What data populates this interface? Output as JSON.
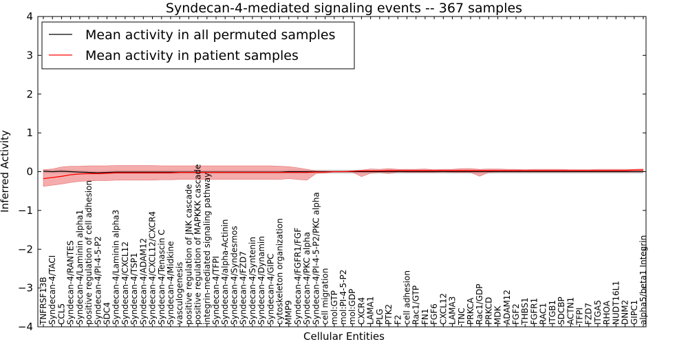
{
  "chart_data": {
    "type": "line",
    "title": "Syndecan-4-mediated signaling events -- 367 samples",
    "xlabel": "Cellular Entities",
    "ylabel": "Inferred Activity",
    "ylim": [
      -4,
      4
    ],
    "yticks": [
      -4,
      -3,
      -2,
      -1,
      0,
      1,
      2,
      3,
      4
    ],
    "ytick_labels": [
      "−4",
      "−3",
      "−2",
      "−1",
      "0",
      "1",
      "2",
      "3",
      "4"
    ],
    "legend_position": "top-left",
    "categories": [
      "TNFRSF13B",
      "Syndecan-4/TACI",
      "CCL5",
      "Syndecan-4/RANTES",
      "Syndecan-4/Laminin alpha1",
      "positive regulation of cell adhesion",
      "Syndecan-4/PI-4-5-P2",
      "SDC4",
      "Syndecan-4/Laminin alpha3",
      "Syndecan-4/CXCL12",
      "Syndecan-4/TSP1",
      "Syndecan-4/ADAM12",
      "Syndecan-4/CXCL12/CXCR4",
      "Syndecan-4/Tenascin C",
      "Syndecan-4/Midkine",
      "vasculogenesis",
      "positive regulation of JNK cascade",
      "positive regulation of MAPKKK cascade",
      "integrin-mediated signaling pathway",
      "Syndecan-4/TFPI",
      "Syndecan-4/alpha-Actinin",
      "Syndecan-4/Syndesmos",
      "Syndecan-4/FZD7",
      "Syndecan-4/Syntenin",
      "Syndecan-4/Dynamin",
      "Syndecan-4/GIPC",
      "cytoskeleton organization",
      "MMP9",
      "Syndecan-4/FGFR1/FGF",
      "Syndecan-4/PKC alpha",
      "Syndecan-4/PI-4-5-P2/PKC alpha",
      "cell migration",
      "mol:GTP",
      "mol:PI-4-5-P2",
      "mol:GDP",
      "CXCR4",
      "LAMA1",
      "PLG",
      "PTK2",
      "F2",
      "cell adhesion",
      "Rac1/GTP",
      "FN1",
      "FGF6",
      "CXCL12",
      "LAMA3",
      "TNC",
      "PRKCA",
      "Rac1/GDP",
      "PRKCD",
      "MDK",
      "ADAM12",
      "FGF2",
      "THBS1",
      "FGFR1",
      "RAC1",
      "ITGB1",
      "SDCBP",
      "ACTN1",
      "TFPI",
      "FZD7",
      "ITGA5",
      "RHOA",
      "NUDT16L1",
      "DNM2",
      "GIPC1",
      "alpha5/beta1 Integrin"
    ],
    "series": [
      {
        "name": "Mean activity in all permuted samples",
        "color": "#000000",
        "values": [
          0.01,
          0.0,
          0.01,
          0.0,
          -0.01,
          -0.02,
          -0.03,
          -0.02,
          -0.01,
          -0.01,
          -0.01,
          -0.01,
          -0.01,
          -0.01,
          -0.01,
          -0.01,
          -0.01,
          -0.01,
          -0.01,
          -0.01,
          -0.01,
          -0.01,
          -0.01,
          -0.01,
          -0.01,
          -0.01,
          -0.01,
          0.0,
          0.0,
          0.0,
          0.0,
          0.0,
          0.0,
          0.0,
          0.0,
          0.0,
          0.0,
          0.0,
          0.0,
          0.0,
          0.0,
          0.0,
          0.0,
          0.0,
          0.0,
          0.0,
          0.0,
          0.0,
          0.0,
          0.0,
          0.0,
          0.0,
          0.0,
          0.0,
          0.0,
          0.0,
          0.0,
          0.0,
          0.0,
          0.0,
          0.0,
          0.0,
          0.0,
          0.0,
          0.0,
          0.0,
          0.0
        ],
        "band": 0.05
      },
      {
        "name": "Mean activity in patient samples",
        "color": "#ff0000",
        "values": [
          -0.18,
          -0.15,
          -0.12,
          -0.08,
          -0.06,
          -0.05,
          -0.05,
          -0.04,
          -0.03,
          -0.03,
          -0.03,
          -0.03,
          -0.03,
          -0.03,
          -0.03,
          -0.02,
          -0.02,
          -0.02,
          -0.02,
          -0.02,
          -0.02,
          -0.02,
          -0.02,
          -0.02,
          -0.02,
          -0.02,
          -0.02,
          -0.02,
          -0.02,
          -0.02,
          -0.01,
          -0.01,
          0.0,
          0.0,
          0.01,
          0.02,
          0.02,
          0.02,
          0.03,
          0.03,
          0.03,
          0.03,
          0.03,
          0.03,
          0.03,
          0.03,
          0.03,
          0.03,
          0.03,
          0.03,
          0.03,
          0.03,
          0.03,
          0.03,
          0.03,
          0.03,
          0.03,
          0.03,
          0.03,
          0.03,
          0.03,
          0.03,
          0.03,
          0.03,
          0.03,
          0.04,
          0.04
        ],
        "band_upper": [
          0.05,
          0.07,
          0.12,
          0.14,
          0.14,
          0.15,
          0.15,
          0.15,
          0.16,
          0.16,
          0.16,
          0.16,
          0.16,
          0.15,
          0.15,
          0.15,
          0.15,
          0.15,
          0.15,
          0.15,
          0.15,
          0.15,
          0.15,
          0.15,
          0.15,
          0.15,
          0.14,
          0.13,
          0.1,
          0.06,
          0.02,
          0.01,
          0.01,
          0.01,
          0.02,
          0.04,
          0.07,
          0.06,
          0.08,
          0.06,
          0.06,
          0.06,
          0.07,
          0.05,
          0.06,
          0.06,
          0.08,
          0.08,
          0.06,
          0.07,
          0.07,
          0.06,
          0.06,
          0.05,
          0.06,
          0.06,
          0.06,
          0.06,
          0.05,
          0.05,
          0.05,
          0.06,
          0.06,
          0.06,
          0.06,
          0.06,
          0.07
        ],
        "band_lower": [
          -0.38,
          -0.35,
          -0.32,
          -0.28,
          -0.25,
          -0.24,
          -0.23,
          -0.23,
          -0.22,
          -0.22,
          -0.22,
          -0.22,
          -0.22,
          -0.21,
          -0.21,
          -0.2,
          -0.2,
          -0.2,
          -0.2,
          -0.2,
          -0.2,
          -0.2,
          -0.2,
          -0.2,
          -0.2,
          -0.2,
          -0.2,
          -0.18,
          -0.2,
          -0.22,
          -0.05,
          -0.03,
          -0.01,
          -0.01,
          -0.01,
          -0.13,
          -0.04,
          -0.02,
          -0.05,
          -0.01,
          -0.02,
          -0.02,
          -0.02,
          -0.02,
          -0.01,
          -0.02,
          -0.02,
          -0.02,
          -0.12,
          -0.02,
          -0.01,
          -0.01,
          -0.01,
          -0.01,
          -0.01,
          -0.01,
          -0.01,
          -0.01,
          -0.01,
          -0.01,
          -0.01,
          -0.01,
          -0.01,
          -0.01,
          -0.01,
          -0.01,
          -0.01
        ]
      }
    ]
  }
}
